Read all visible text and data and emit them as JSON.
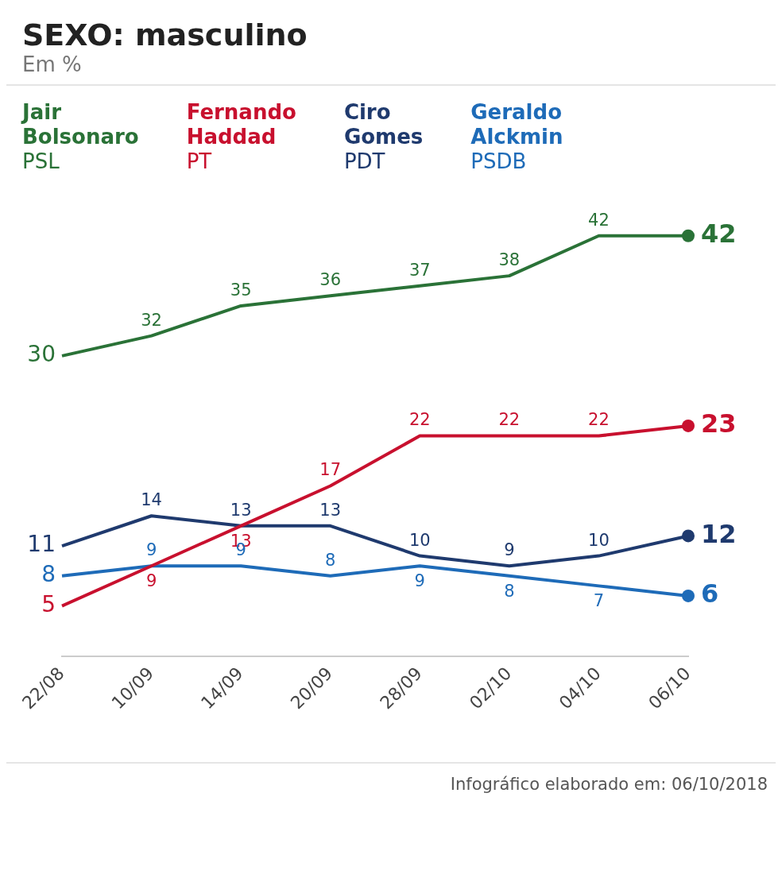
{
  "chart_data": {
    "type": "line",
    "title": "SEXO: masculino",
    "subtitle": "Em %",
    "categories": [
      "22/08",
      "10/09",
      "14/09",
      "20/09",
      "28/09",
      "02/10",
      "04/10",
      "06/10"
    ],
    "series": [
      {
        "name": "Jair\nBolsonaro\nPSL",
        "color": "#2a7237",
        "values": [
          30,
          32,
          35,
          36,
          37,
          38,
          42,
          42
        ]
      },
      {
        "name": "Fernando\nHaddad\nPT",
        "color": "#c8102e",
        "values": [
          5,
          9,
          13,
          17,
          22,
          22,
          22,
          23
        ]
      },
      {
        "name": "Ciro\nGomes\nPDT",
        "color": "#1f3a6e",
        "values": [
          11,
          14,
          13,
          13,
          10,
          9,
          10,
          12
        ]
      },
      {
        "name": "Geraldo\nAlckmin\nPSDB",
        "color": "#1e6bb8",
        "values": [
          8,
          9,
          9,
          8,
          9,
          8,
          7,
          6
        ]
      }
    ],
    "data_labels": true,
    "legend": "top left",
    "grid": false,
    "tick_labels": "x",
    "annotations": [
      "Infográfico elaborado em: 06/10/2018"
    ]
  }
}
